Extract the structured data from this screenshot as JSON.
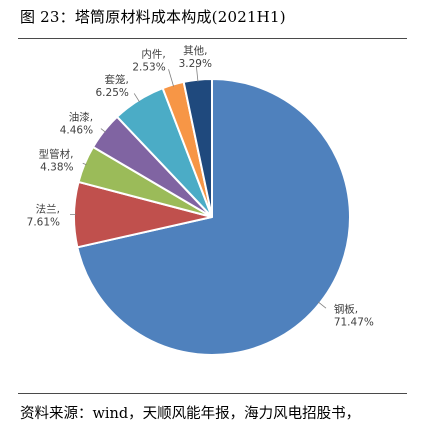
{
  "header": {
    "title": "图 23：塔筒原材料成本构成(2021H1)"
  },
  "footer": {
    "source": "资料来源：wind，天顺风能年报，海力风电招股书，"
  },
  "chart_data": {
    "type": "pie",
    "title": "塔筒原材料成本构成(2021H1)",
    "slices": [
      {
        "label": "钢板",
        "value": 71.47,
        "display": "71.47%",
        "color": "#4F81BD"
      },
      {
        "label": "法兰",
        "value": 7.61,
        "display": "7.61%",
        "color": "#C0504D"
      },
      {
        "label": "型管材",
        "value": 4.38,
        "display": "4.38%",
        "color": "#9BBB59"
      },
      {
        "label": "油漆",
        "value": 4.46,
        "display": "4.46%",
        "color": "#8064A2"
      },
      {
        "label": "套笼",
        "value": 6.25,
        "display": "6.25%",
        "color": "#4BACC6"
      },
      {
        "label": "内件",
        "value": 2.53,
        "display": "2.53%",
        "color": "#F79646"
      },
      {
        "label": "其他",
        "value": 3.29,
        "display": "3.29%",
        "color": "#1F497D"
      }
    ],
    "start_angle_deg": 0,
    "direction": "clockwise",
    "legend": "none",
    "data_labels": "outside-with-leader-lines"
  }
}
